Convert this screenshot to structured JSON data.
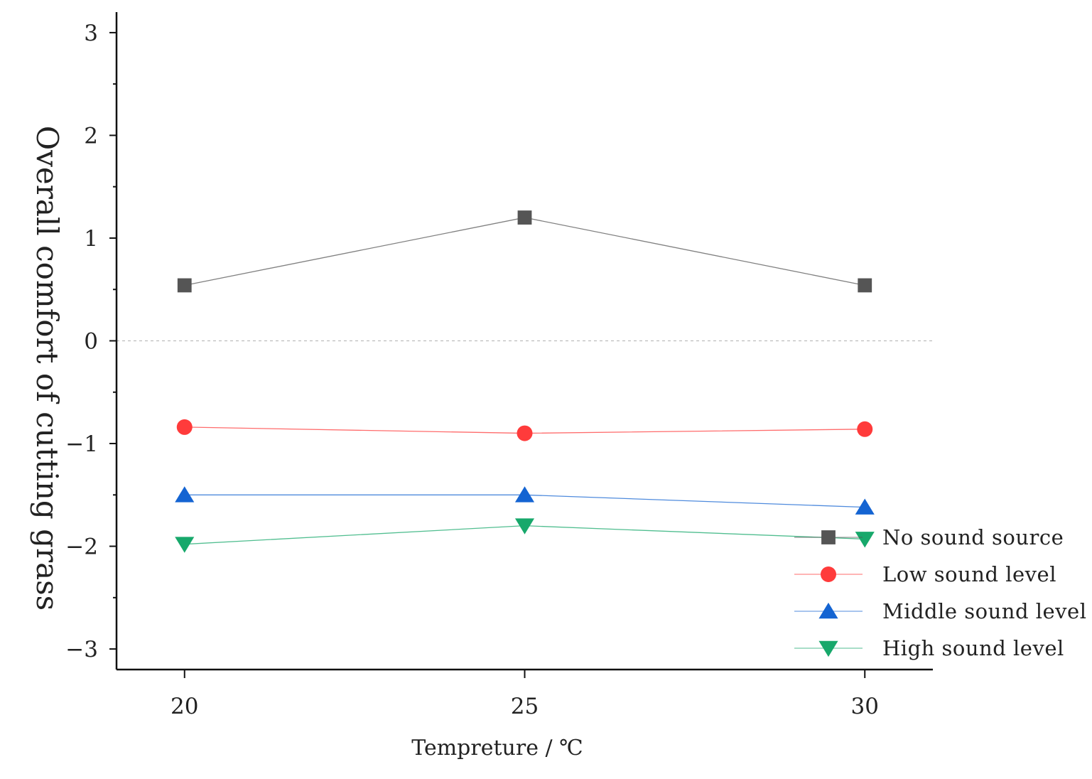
{
  "chart_data": {
    "type": "line",
    "title": "",
    "xlabel": "Tempreture / ℃",
    "ylabel": "Overall comfort of cutting grass",
    "categories": [
      "20",
      "25",
      "30"
    ],
    "x": [
      20,
      25,
      30
    ],
    "xlim": [
      19,
      31
    ],
    "ylim": [
      -3.2,
      3.2
    ],
    "yticks": [
      -3,
      -2,
      -1,
      0,
      1,
      2,
      3
    ],
    "ytick_labels": [
      "−3",
      "−2",
      "−1",
      "0",
      "1",
      "2",
      "3"
    ],
    "xtick_labels": [
      "20",
      "25",
      "30"
    ],
    "reference_line": {
      "y": 0,
      "style": "dashed"
    },
    "legend_position": "bottom-right",
    "series": [
      {
        "name": "No sound source",
        "values": [
          0.54,
          1.2,
          0.54
        ],
        "color": "#555555",
        "marker": "square"
      },
      {
        "name": "Low sound level",
        "values": [
          -0.84,
          -0.9,
          -0.86
        ],
        "color": "#ff3b3b",
        "marker": "circle"
      },
      {
        "name": "Middle sound level",
        "values": [
          -1.5,
          -1.5,
          -1.62
        ],
        "color": "#1464d2",
        "marker": "triangle-up"
      },
      {
        "name": "High sound level",
        "values": [
          -1.98,
          -1.8,
          -1.93
        ],
        "color": "#17a86b",
        "marker": "triangle-down"
      }
    ]
  }
}
